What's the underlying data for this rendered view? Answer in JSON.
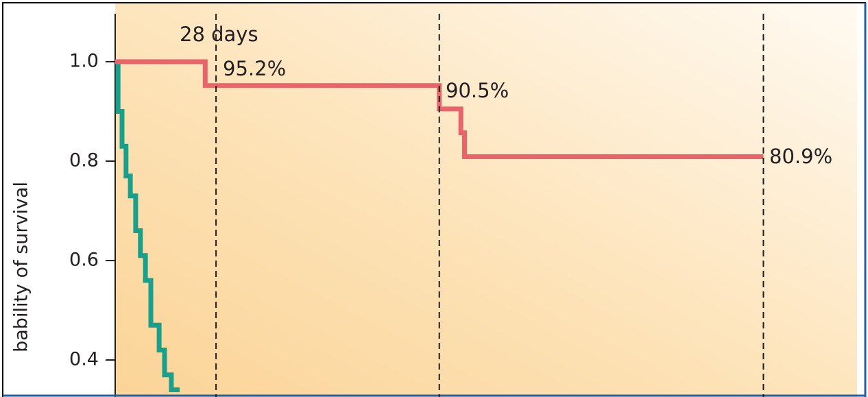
{
  "chart_data": {
    "type": "line",
    "y_label": "bability of survival",
    "ylim": [
      0.33,
      1.1
    ],
    "yticks": [
      {
        "value": 1,
        "label": "1.0"
      },
      0.8,
      0.6,
      0.4
    ],
    "xlim": [
      0,
      206
    ],
    "vlines": [
      28,
      90,
      180
    ],
    "annotations": [
      "28 days",
      "95.2%",
      "90.5%",
      "80.9%"
    ],
    "series": [
      {
        "color": "#e8646a",
        "x": [
          0,
          25,
          25,
          90,
          90,
          96,
          96,
          97,
          97,
          180
        ],
        "values": [
          1,
          1,
          0.952,
          0.952,
          0.905,
          0.905,
          0.857,
          0.857,
          0.809,
          0.809
        ]
      },
      {
        "color": "#17a08b",
        "x": [
          0,
          0.8,
          0.8,
          1.9,
          1.9,
          3,
          3,
          4.2,
          4.2,
          5.7,
          5.7,
          7,
          7,
          8.4,
          8.4,
          9.9,
          9.9,
          12.2,
          12.2,
          13.7,
          13.7,
          15.6,
          15.6,
          17.9
        ],
        "values": [
          1,
          1,
          0.9,
          0.9,
          0.83,
          0.83,
          0.77,
          0.77,
          0.73,
          0.73,
          0.66,
          0.66,
          0.61,
          0.61,
          0.56,
          0.56,
          0.47,
          0.47,
          0.42,
          0.42,
          0.37,
          0.37,
          0.34,
          0.34
        ]
      }
    ]
  }
}
